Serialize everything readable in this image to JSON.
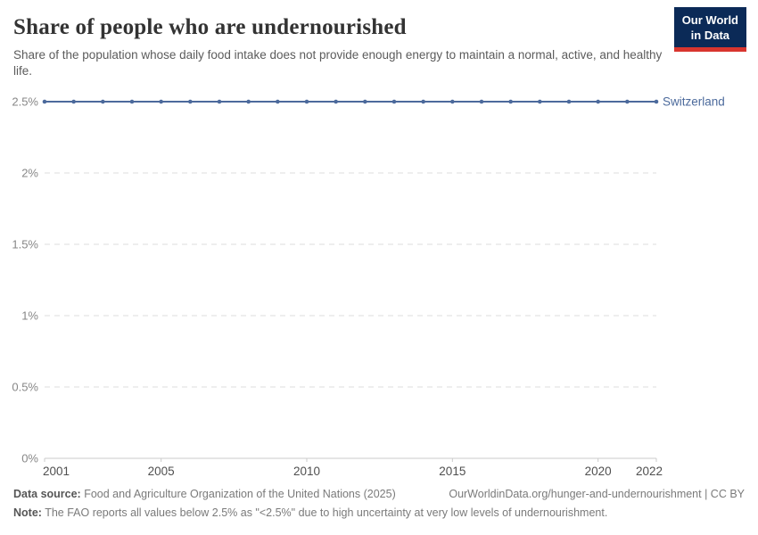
{
  "header": {
    "title": "Share of people who are undernourished",
    "subtitle": "Share of the population whose daily food intake does not provide enough energy to maintain a normal, active, and healthy life.",
    "logo": {
      "line1": "Our World",
      "line2": "in Data",
      "bg_color": "#0b2a57",
      "stripe_color": "#d8352e"
    }
  },
  "chart_data": {
    "type": "line",
    "title": "Share of people who are undernourished",
    "x": [
      2001,
      2002,
      2003,
      2004,
      2005,
      2006,
      2007,
      2008,
      2009,
      2010,
      2011,
      2012,
      2013,
      2014,
      2015,
      2016,
      2017,
      2018,
      2019,
      2020,
      2021,
      2022
    ],
    "series": [
      {
        "name": "Switzerland",
        "color": "#4c6a9c",
        "values": [
          2.5,
          2.5,
          2.5,
          2.5,
          2.5,
          2.5,
          2.5,
          2.5,
          2.5,
          2.5,
          2.5,
          2.5,
          2.5,
          2.5,
          2.5,
          2.5,
          2.5,
          2.5,
          2.5,
          2.5,
          2.5,
          2.5
        ]
      }
    ],
    "xlim": [
      2001,
      2022
    ],
    "ylim": [
      0,
      2.5
    ],
    "x_ticks": [
      2001,
      2005,
      2010,
      2015,
      2020,
      2022
    ],
    "y_ticks": [
      {
        "value": 0,
        "label": "0%"
      },
      {
        "value": 0.5,
        "label": "0.5%"
      },
      {
        "value": 1,
        "label": "1%"
      },
      {
        "value": 1.5,
        "label": "1.5%"
      },
      {
        "value": 2,
        "label": "2%"
      },
      {
        "value": 2.5,
        "label": "2.5%"
      }
    ],
    "grid": "horizontal-dashed",
    "grid_color": "#dddddd",
    "axis_line_color": "#cbcbcb",
    "y_label_color": "#878787",
    "x_label_color": "#4f4f4f",
    "legend_position": "end-of-line"
  },
  "footer": {
    "source_label": "Data source:",
    "source_text": "Food and Agriculture Organization of the United Nations (2025)",
    "link_text": "OurWorldinData.org/hunger-and-undernourishment | CC BY",
    "note_label": "Note:",
    "note_text": "The FAO reports all values below 2.5% as \"<2.5%\" due to high uncertainty at very low levels of undernourishment."
  }
}
